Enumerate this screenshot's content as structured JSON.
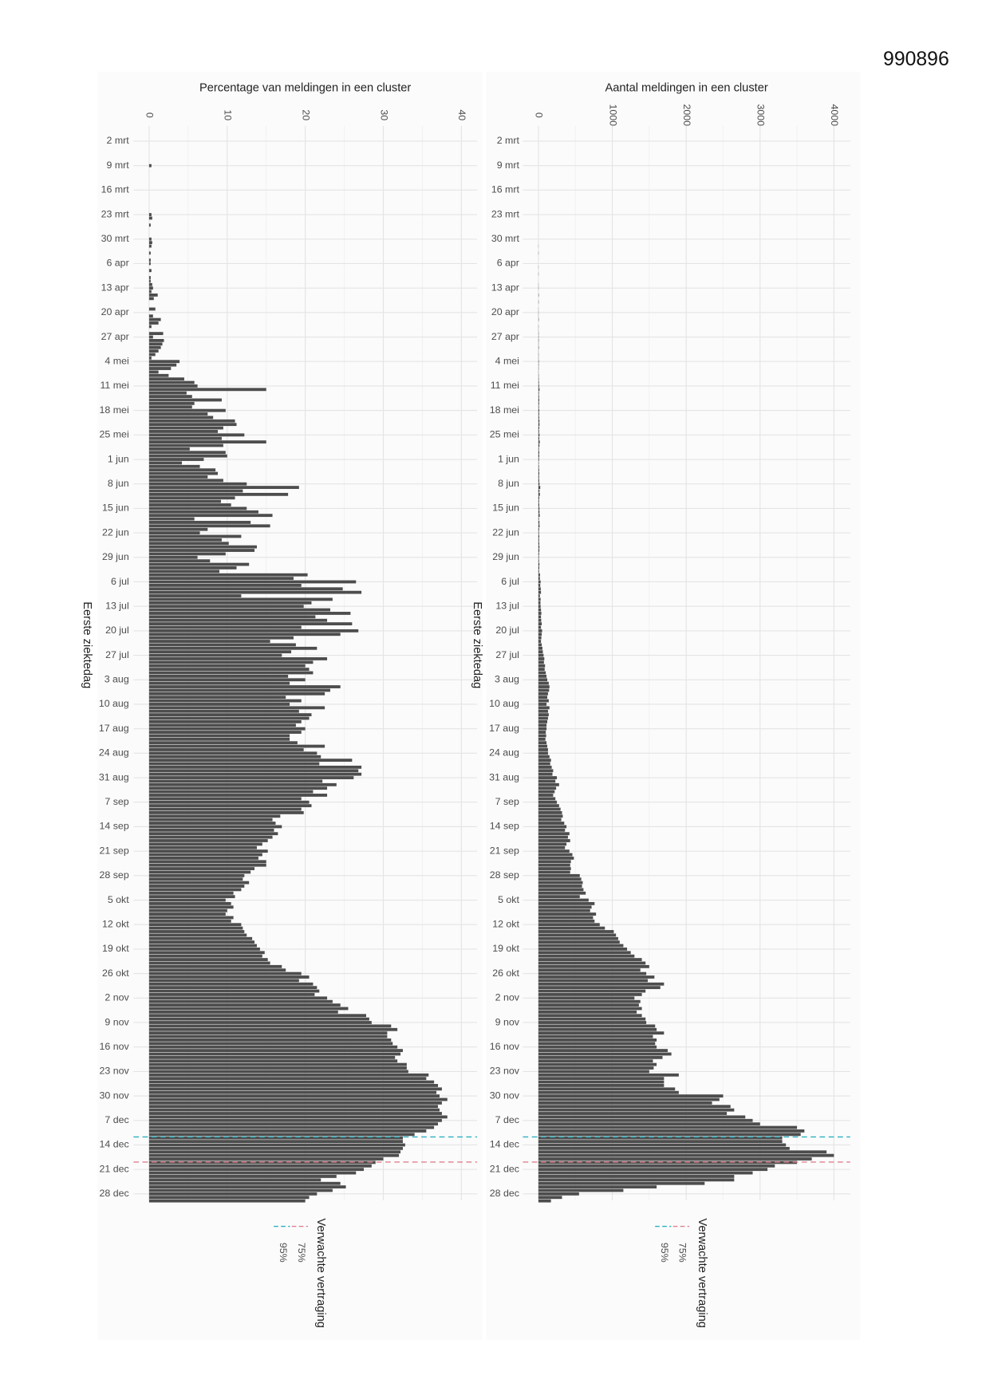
{
  "header": {
    "id": "990896"
  },
  "chart_data": [
    {
      "type": "barh",
      "title": "Percentage van meldingen in een cluster",
      "y_label": "Eerste ziektedag",
      "xlim": [
        -2,
        42
      ],
      "xticks": [
        0,
        10,
        20,
        30,
        40
      ],
      "grid": true,
      "color": "#4d4d4d",
      "categories": [
        "2 mrt",
        null,
        null,
        null,
        null,
        null,
        null,
        "9 mrt",
        null,
        null,
        null,
        null,
        null,
        null,
        "16 mrt",
        null,
        null,
        null,
        null,
        null,
        null,
        "23 mrt",
        null,
        null,
        null,
        null,
        null,
        null,
        "30 mrt",
        null,
        null,
        null,
        null,
        null,
        null,
        "6 apr",
        null,
        null,
        null,
        null,
        null,
        null,
        "13 apr",
        null,
        null,
        null,
        null,
        null,
        null,
        "20 apr",
        null,
        null,
        null,
        null,
        null,
        null,
        "27 apr",
        null,
        null,
        null,
        null,
        null,
        null,
        "4 mei",
        null,
        null,
        null,
        null,
        null,
        null,
        "11 mei",
        null,
        null,
        null,
        null,
        null,
        null,
        "18 mei",
        null,
        null,
        null,
        null,
        null,
        null,
        "25 mei",
        null,
        null,
        null,
        null,
        null,
        null,
        "1 jun",
        null,
        null,
        null,
        null,
        null,
        null,
        "8 jun",
        null,
        null,
        null,
        null,
        null,
        null,
        "15 jun",
        null,
        null,
        null,
        null,
        null,
        null,
        "22 jun",
        null,
        null,
        null,
        null,
        null,
        null,
        "29 jun",
        null,
        null,
        null,
        null,
        null,
        null,
        "6 jul",
        null,
        null,
        null,
        null,
        null,
        null,
        "13 jul",
        null,
        null,
        null,
        null,
        null,
        null,
        "20 jul",
        null,
        null,
        null,
        null,
        null,
        null,
        "27 jul",
        null,
        null,
        null,
        null,
        null,
        null,
        "3 aug",
        null,
        null,
        null,
        null,
        null,
        null,
        "10 aug",
        null,
        null,
        null,
        null,
        null,
        null,
        "17 aug",
        null,
        null,
        null,
        null,
        null,
        null,
        "24 aug",
        null,
        null,
        null,
        null,
        null,
        null,
        "31 aug",
        null,
        null,
        null,
        null,
        null,
        null,
        "7 sep",
        null,
        null,
        null,
        null,
        null,
        null,
        "14 sep",
        null,
        null,
        null,
        null,
        null,
        null,
        "21 sep",
        null,
        null,
        null,
        null,
        null,
        null,
        "28 sep",
        null,
        null,
        null,
        null,
        null,
        null,
        "5 okt",
        null,
        null,
        null,
        null,
        null,
        null,
        "12 okt",
        null,
        null,
        null,
        null,
        null,
        null,
        "19 okt",
        null,
        null,
        null,
        null,
        null,
        null,
        "26 okt",
        null,
        null,
        null,
        null,
        null,
        null,
        "2 nov",
        null,
        null,
        null,
        null,
        null,
        null,
        "9 nov",
        null,
        null,
        null,
        null,
        null,
        null,
        "16 nov",
        null,
        null,
        null,
        null,
        null,
        null,
        "23 nov",
        null,
        null,
        null,
        null,
        null,
        null,
        "30 nov",
        null,
        null,
        null,
        null,
        null,
        null,
        "7 dec",
        null,
        null,
        null,
        null,
        null,
        null,
        "14 dec",
        null,
        null,
        null,
        null,
        null,
        null,
        "21 dec",
        null,
        null,
        null,
        null,
        null,
        null,
        "28 dec",
        null,
        null
      ],
      "values": [
        0,
        0,
        0,
        0,
        0,
        0,
        0,
        0.3,
        0,
        0,
        0,
        0,
        0,
        0,
        0,
        0,
        0,
        0,
        0,
        0,
        0,
        0.3,
        0.4,
        0,
        0.2,
        0,
        0,
        0,
        0.3,
        0.4,
        0.3,
        0,
        0.2,
        0,
        0.2,
        0.2,
        0,
        0.3,
        0,
        0.2,
        0.2,
        0.4,
        0.5,
        0.3,
        1.1,
        0.6,
        0,
        0,
        0.8,
        0,
        0.5,
        1.5,
        1.2,
        0.3,
        0,
        1.8,
        0.5,
        1.9,
        1.7,
        1.5,
        1.2,
        0.8,
        0.3,
        3.9,
        3.5,
        2.8,
        1.2,
        2.5,
        4.5,
        5.8,
        6.2,
        15,
        4.8,
        5.5,
        9.3,
        5.8,
        5.5,
        9.8,
        7.5,
        8.2,
        11,
        11.2,
        9.5,
        8.8,
        12.2,
        9.3,
        15,
        9.5,
        5.2,
        9.8,
        10,
        7,
        4.2,
        6.5,
        8.5,
        8.8,
        7.5,
        9.5,
        12.5,
        19.2,
        12,
        17.8,
        11,
        9.2,
        10.5,
        12.5,
        14,
        15.8,
        5.8,
        13,
        15.5,
        7.5,
        6.5,
        11.8,
        9.3,
        10.2,
        13.8,
        13.5,
        9.8,
        6.2,
        7.8,
        12.8,
        11.2,
        9,
        20.3,
        18.5,
        26.5,
        19.5,
        24.8,
        27.2,
        11.8,
        23.5,
        20.8,
        19.8,
        23.2,
        25.8,
        21.3,
        22.8,
        26,
        19.5,
        26.8,
        24.5,
        18.5,
        15.5,
        18.8,
        21.5,
        18.2,
        17,
        22.8,
        21,
        20,
        20.5,
        21,
        17.8,
        20,
        18,
        24.5,
        23.2,
        22.5,
        17.5,
        19.5,
        18,
        22.5,
        19.2,
        20.8,
        20.5,
        19.5,
        18.8,
        20,
        19.5,
        18,
        18,
        19,
        22.5,
        19.8,
        21.5,
        22,
        26,
        21.8,
        27.2,
        26.8,
        27.2,
        26.2,
        22.2,
        24,
        22.8,
        21,
        22.8,
        19.5,
        20.5,
        20.8,
        19.5,
        19.8,
        16.8,
        15.8,
        16.2,
        17,
        16,
        16.5,
        15.8,
        15.2,
        14.5,
        13.8,
        15.2,
        14.5,
        14,
        15,
        15,
        13.5,
        13,
        12.2,
        12,
        12.8,
        12.2,
        11.8,
        10.8,
        11,
        9.8,
        10.5,
        10.8,
        10,
        9.8,
        10.8,
        10.5,
        11.8,
        12,
        12.2,
        12.5,
        13.2,
        13.5,
        13.8,
        14.2,
        14.8,
        14.5,
        15.2,
        15.5,
        17,
        17.5,
        19.5,
        20.5,
        19.2,
        21,
        21.5,
        21.8,
        21.2,
        22.8,
        23.5,
        24.5,
        25.5,
        24.2,
        27.8,
        28.2,
        28.5,
        31,
        31.8,
        30.5,
        30.5,
        31,
        31.2,
        31.8,
        32.5,
        32.2,
        31.5,
        31.8,
        33,
        33,
        33.2,
        35.8,
        35.5,
        36.5,
        37,
        37.5,
        36.8,
        37.2,
        38.2,
        37.5,
        37,
        37.2,
        37.5,
        38.2,
        37.5,
        37,
        36.5,
        35.5,
        34,
        32.5,
        32.5,
        32.8,
        32.5,
        32.2,
        32,
        30,
        29,
        28.5,
        27.5,
        26.5,
        24,
        22,
        24.5,
        25.2,
        23.5,
        21.5,
        20.5,
        20
      ],
      "legend_title": "Verwachte vertraging",
      "reference_lines": [
        {
          "name": "95%",
          "color": "#2ab0c0",
          "position": 284.7
        },
        {
          "name": "75%",
          "color": "#e0808f",
          "position": 291.9
        }
      ]
    },
    {
      "type": "barh",
      "title": "Aantal meldingen in een cluster",
      "y_label": "Eerste ziektedag",
      "xlim": [
        -210,
        4220
      ],
      "xticks": [
        0,
        1000,
        2000,
        3000,
        4000
      ],
      "grid": true,
      "color": "#4d4d4d",
      "categories": [
        "2 mrt",
        null,
        null,
        null,
        null,
        null,
        null,
        "9 mrt",
        null,
        null,
        null,
        null,
        null,
        null,
        "16 mrt",
        null,
        null,
        null,
        null,
        null,
        null,
        "23 mrt",
        null,
        null,
        null,
        null,
        null,
        null,
        "30 mrt",
        null,
        null,
        null,
        null,
        null,
        null,
        "6 apr",
        null,
        null,
        null,
        null,
        null,
        null,
        "13 apr",
        null,
        null,
        null,
        null,
        null,
        null,
        "20 apr",
        null,
        null,
        null,
        null,
        null,
        null,
        "27 apr",
        null,
        null,
        null,
        null,
        null,
        null,
        "4 mei",
        null,
        null,
        null,
        null,
        null,
        null,
        "11 mei",
        null,
        null,
        null,
        null,
        null,
        null,
        "18 mei",
        null,
        null,
        null,
        null,
        null,
        null,
        "25 mei",
        null,
        null,
        null,
        null,
        null,
        null,
        "1 jun",
        null,
        null,
        null,
        null,
        null,
        null,
        "8 jun",
        null,
        null,
        null,
        null,
        null,
        null,
        "15 jun",
        null,
        null,
        null,
        null,
        null,
        null,
        "22 jun",
        null,
        null,
        null,
        null,
        null,
        null,
        "29 jun",
        null,
        null,
        null,
        null,
        null,
        null,
        "6 jul",
        null,
        null,
        null,
        null,
        null,
        null,
        "13 jul",
        null,
        null,
        null,
        null,
        null,
        null,
        "20 jul",
        null,
        null,
        null,
        null,
        null,
        null,
        "27 jul",
        null,
        null,
        null,
        null,
        null,
        null,
        "3 aug",
        null,
        null,
        null,
        null,
        null,
        null,
        "10 aug",
        null,
        null,
        null,
        null,
        null,
        null,
        "17 aug",
        null,
        null,
        null,
        null,
        null,
        null,
        "24 aug",
        null,
        null,
        null,
        null,
        null,
        null,
        "31 aug",
        null,
        null,
        null,
        null,
        null,
        null,
        "7 sep",
        null,
        null,
        null,
        null,
        null,
        null,
        "14 sep",
        null,
        null,
        null,
        null,
        null,
        null,
        "21 sep",
        null,
        null,
        null,
        null,
        null,
        null,
        "28 sep",
        null,
        null,
        null,
        null,
        null,
        null,
        "5 okt",
        null,
        null,
        null,
        null,
        null,
        null,
        "12 okt",
        null,
        null,
        null,
        null,
        null,
        null,
        "19 okt",
        null,
        null,
        null,
        null,
        null,
        null,
        "26 okt",
        null,
        null,
        null,
        null,
        null,
        null,
        "2 nov",
        null,
        null,
        null,
        null,
        null,
        null,
        "9 nov",
        null,
        null,
        null,
        null,
        null,
        null,
        "16 nov",
        null,
        null,
        null,
        null,
        null,
        null,
        "23 nov",
        null,
        null,
        null,
        null,
        null,
        null,
        "30 nov",
        null,
        null,
        null,
        null,
        null,
        null,
        "7 dec",
        null,
        null,
        null,
        null,
        null,
        null,
        "14 dec",
        null,
        null,
        null,
        null,
        null,
        null,
        "21 dec",
        null,
        null,
        null,
        null,
        null,
        null,
        "28 dec",
        null,
        null
      ],
      "values": [
        0,
        0,
        0,
        0,
        0,
        0,
        0,
        0,
        0,
        0,
        0,
        0,
        0,
        0,
        0,
        0,
        0,
        0,
        0,
        0,
        0,
        0,
        0,
        0,
        0,
        0,
        0,
        0,
        0,
        0,
        2,
        0,
        3,
        0,
        0,
        0,
        2,
        0,
        3,
        0,
        0,
        2,
        3,
        0,
        5,
        0,
        4,
        0,
        2,
        3,
        2,
        5,
        0,
        3,
        2,
        4,
        4,
        5,
        3,
        6,
        2,
        4,
        3,
        6,
        5,
        4,
        3,
        5,
        6,
        8,
        10,
        15,
        8,
        9,
        12,
        10,
        8,
        12,
        10,
        11,
        14,
        15,
        12,
        10,
        15,
        12,
        18,
        14,
        8,
        12,
        12,
        9,
        6,
        8,
        10,
        12,
        10,
        12,
        15,
        25,
        15,
        20,
        12,
        10,
        12,
        14,
        15,
        18,
        8,
        14,
        16,
        10,
        8,
        12,
        10,
        12,
        14,
        13,
        10,
        8,
        9,
        14,
        12,
        10,
        22,
        20,
        30,
        25,
        32,
        35,
        20,
        30,
        28,
        30,
        35,
        40,
        35,
        38,
        45,
        35,
        50,
        45,
        40,
        35,
        45,
        55,
        60,
        70,
        80,
        75,
        90,
        85,
        100,
        110,
        120,
        140,
        150,
        145,
        130,
        120,
        140,
        110,
        150,
        130,
        140,
        130,
        120,
        110,
        110,
        100,
        105,
        95,
        110,
        120,
        130,
        130,
        150,
        170,
        160,
        180,
        200,
        190,
        250,
        230,
        280,
        240,
        220,
        200,
        230,
        250,
        280,
        300,
        320,
        330,
        310,
        350,
        380,
        360,
        420,
        400,
        430,
        380,
        360,
        420,
        460,
        480,
        440,
        430,
        440,
        430,
        560,
        580,
        600,
        590,
        610,
        640,
        560,
        680,
        760,
        720,
        700,
        780,
        740,
        760,
        830,
        900,
        1020,
        1050,
        1080,
        1100,
        1150,
        1200,
        1250,
        1300,
        1400,
        1450,
        1500,
        1380,
        1460,
        1570,
        1480,
        1700,
        1650,
        1450,
        1400,
        1300,
        1380,
        1360,
        1400,
        1330,
        1400,
        1450,
        1460,
        1580,
        1600,
        1700,
        1550,
        1600,
        1580,
        1600,
        1750,
        1800,
        1680,
        1550,
        1600,
        1560,
        1500,
        1900,
        1700,
        1700,
        1700,
        1850,
        1900,
        2500,
        2450,
        2350,
        2600,
        2650,
        2550,
        2800,
        2900,
        3000,
        3500,
        3600,
        3550,
        3300,
        3300,
        3350,
        3400,
        3900,
        4000,
        3700,
        3500,
        3200,
        3100,
        2900,
        2650,
        2650,
        2250,
        1600,
        1150,
        550,
        320,
        170
      ],
      "legend_title": "Verwachte vertraging",
      "reference_lines": [
        {
          "name": "95%",
          "color": "#2ab0c0",
          "position": 284.7
        },
        {
          "name": "75%",
          "color": "#e0808f",
          "position": 291.9
        }
      ]
    }
  ]
}
